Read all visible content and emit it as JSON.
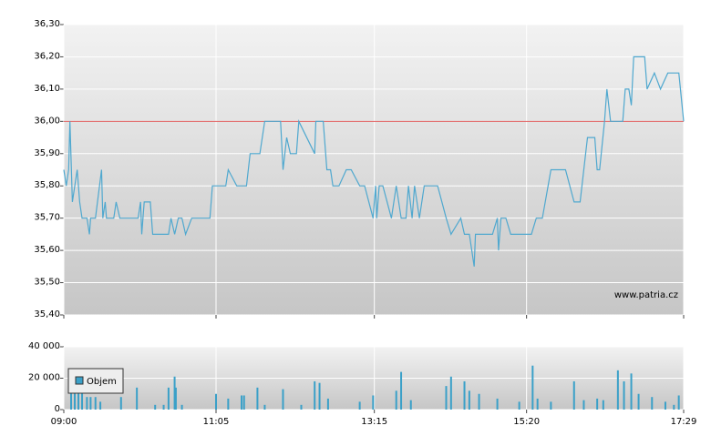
{
  "chart_data": [
    {
      "type": "line",
      "x": [
        "09:00",
        "09:02",
        "09:04",
        "09:05",
        "09:07",
        "09:11",
        "09:13",
        "09:15",
        "09:19",
        "09:21",
        "09:22",
        "09:26",
        "09:31",
        "09:32",
        "09:34",
        "09:35",
        "09:41",
        "09:43",
        "09:46",
        "10:01",
        "10:03",
        "10:04",
        "10:06",
        "10:11",
        "10:13",
        "10:26",
        "10:28",
        "10:31",
        "10:34",
        "10:37",
        "10:40",
        "10:45",
        "11:00",
        "11:02",
        "11:13",
        "11:15",
        "11:22",
        "11:30",
        "11:33",
        "11:41",
        "11:45",
        "11:58",
        "12:00",
        "12:03",
        "12:06",
        "12:11",
        "12:13",
        "12:26",
        "12:27",
        "12:33",
        "12:36",
        "12:39",
        "12:41",
        "12:46",
        "12:52",
        "12:56",
        "13:03",
        "13:07",
        "13:14",
        "13:16",
        "13:17",
        "13:19",
        "13:22",
        "13:29",
        "13:33",
        "13:37",
        "13:41",
        "13:43",
        "13:46",
        "13:48",
        "13:52",
        "13:56",
        "14:07",
        "14:14",
        "14:18",
        "14:26",
        "14:29",
        "14:33",
        "14:37",
        "14:38",
        "14:52",
        "14:56",
        "14:57",
        "14:59",
        "15:03",
        "15:07",
        "15:24",
        "15:28",
        "15:33",
        "15:40",
        "15:52",
        "15:59",
        "16:04",
        "16:10",
        "16:16",
        "16:18",
        "16:20",
        "16:24",
        "16:26",
        "16:29",
        "16:39",
        "16:41",
        "16:44",
        "16:46",
        "16:48",
        "16:57",
        "16:59",
        "17:05",
        "17:10",
        "17:16",
        "17:25",
        "17:29"
      ],
      "values": [
        35.85,
        35.8,
        35.85,
        36.0,
        35.75,
        35.85,
        35.75,
        35.7,
        35.7,
        35.65,
        35.7,
        35.7,
        35.85,
        35.7,
        35.75,
        35.7,
        35.7,
        35.75,
        35.7,
        35.7,
        35.75,
        35.65,
        35.75,
        35.75,
        35.65,
        35.65,
        35.7,
        35.65,
        35.7,
        35.7,
        35.65,
        35.7,
        35.7,
        35.8,
        35.8,
        35.85,
        35.8,
        35.8,
        35.9,
        35.9,
        36.0,
        36.0,
        35.85,
        35.95,
        35.9,
        35.9,
        36.0,
        35.9,
        36.0,
        36.0,
        35.85,
        35.85,
        35.8,
        35.8,
        35.85,
        35.85,
        35.8,
        35.8,
        35.7,
        35.8,
        35.7,
        35.8,
        35.8,
        35.7,
        35.8,
        35.7,
        35.7,
        35.8,
        35.7,
        35.8,
        35.7,
        35.8,
        35.8,
        35.7,
        35.65,
        35.7,
        35.65,
        35.65,
        35.55,
        35.65,
        35.65,
        35.7,
        35.6,
        35.7,
        35.7,
        35.65,
        35.65,
        35.7,
        35.7,
        35.85,
        35.85,
        35.75,
        35.75,
        35.95,
        35.95,
        35.85,
        35.85,
        36.0,
        36.1,
        36.0,
        36.0,
        36.1,
        36.1,
        36.05,
        36.2,
        36.2,
        36.1,
        36.15,
        36.1,
        36.15,
        36.15,
        36.0
      ],
      "color": "#4fa8cf",
      "ylim": [
        35.4,
        36.3
      ],
      "yticks": [
        {
          "value": 35.4,
          "label": "35,40"
        },
        {
          "value": 35.5,
          "label": "35,50"
        },
        {
          "value": 35.6,
          "label": "35,60"
        },
        {
          "value": 35.7,
          "label": "35,70"
        },
        {
          "value": 35.8,
          "label": "35,80"
        },
        {
          "value": 35.9,
          "label": "35,90"
        },
        {
          "value": 36.0,
          "label": "36,00"
        },
        {
          "value": 36.1,
          "label": "36,10"
        },
        {
          "value": 36.2,
          "label": "36,20"
        },
        {
          "value": 36.3,
          "label": "36,30"
        }
      ],
      "reference_line": {
        "value": 36.0,
        "color": "#e06060"
      },
      "watermark": "www.patria.cz",
      "grid": true
    },
    {
      "type": "bar",
      "x": [
        "09:06",
        "09:09",
        "09:12",
        "09:15",
        "09:19",
        "09:22",
        "09:26",
        "09:30",
        "09:47",
        "10:00",
        "10:15",
        "10:22",
        "10:26",
        "10:31",
        "10:32",
        "10:37",
        "11:05",
        "11:15",
        "11:26",
        "11:28",
        "11:39",
        "11:45",
        "12:00",
        "12:15",
        "12:26",
        "12:30",
        "12:37",
        "13:03",
        "13:14",
        "13:33",
        "13:37",
        "13:45",
        "14:14",
        "14:18",
        "14:29",
        "14:33",
        "14:41",
        "14:56",
        "15:14",
        "15:25",
        "15:29",
        "15:40",
        "15:59",
        "16:07",
        "16:18",
        "16:23",
        "16:35",
        "16:40",
        "16:46",
        "16:52",
        "17:03",
        "17:14",
        "17:21",
        "17:25"
      ],
      "series": [
        {
          "name": "Objem",
          "color": "#3aa0c8",
          "values": [
            25000,
            25000,
            25000,
            20000,
            8000,
            8000,
            8000,
            5000,
            8000,
            14000,
            3000,
            3000,
            14000,
            21000,
            14000,
            3000,
            10000,
            7000,
            9000,
            9000,
            14000,
            3000,
            13000,
            3000,
            18000,
            17000,
            7000,
            5000,
            9000,
            12000,
            24000,
            6000,
            15000,
            21000,
            18000,
            12000,
            10000,
            7000,
            5000,
            28000,
            7000,
            5000,
            18000,
            6000,
            7000,
            6000,
            25000,
            18000,
            23000,
            10000,
            8000,
            5000,
            3000,
            9000
          ]
        }
      ],
      "ylim": [
        0,
        40000
      ],
      "yticks": [
        {
          "value": 0,
          "label": "0"
        },
        {
          "value": 20000,
          "label": "20 000"
        },
        {
          "value": 40000,
          "label": "40 000"
        }
      ],
      "xlim": [
        "09:00",
        "17:29"
      ],
      "xticks": [
        "09:00",
        "11:05",
        "13:15",
        "15:20",
        "17:29"
      ],
      "grid": true
    }
  ]
}
